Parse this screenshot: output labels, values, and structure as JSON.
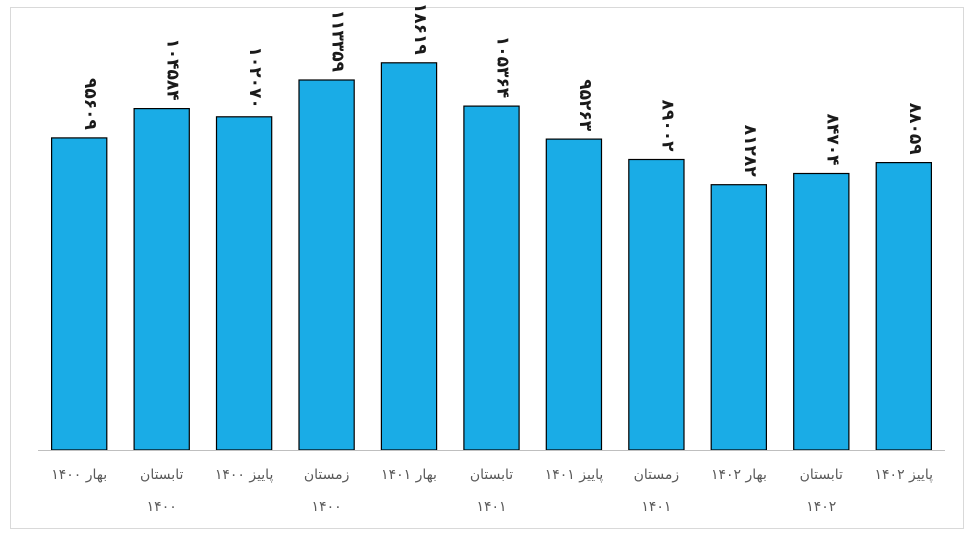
{
  "chart_data": {
    "type": "bar",
    "categories": [
      [
        "بهار ۱۴۰۰"
      ],
      [
        "تابستان",
        "۱۴۰۰"
      ],
      [
        "پاییز ۱۴۰۰"
      ],
      [
        "زمستان",
        "۱۴۰۰"
      ],
      [
        "بهار ۱۴۰۱"
      ],
      [
        "تابستان",
        "۱۴۰۱"
      ],
      [
        "پاییز ۱۴۰۱"
      ],
      [
        "زمستان",
        "۱۴۰۱"
      ],
      [
        "بهار ۱۴۰۲"
      ],
      [
        "تابستان",
        "۱۴۰۲"
      ],
      [
        "پاییز ۱۴۰۲"
      ]
    ],
    "values": [
      95609,
      104584,
      102070,
      113359,
      118619,
      105364,
      95263,
      89002,
      81282,
      84704,
      88059
    ],
    "value_labels": [
      "۹۵۶۰۹",
      "۱۰۴۵۸۴",
      "۱۰۲۰۷۰",
      "۱۱۳۳۵۹",
      "۱۱۸۶۱۹",
      "۱۰۵۳۶۴",
      "۹۵۲۶۳",
      "۸۹۰۰۲",
      "۸۱۲۸۲",
      "۸۴۷۰۴",
      "۸۸۰۵۹"
    ],
    "ylim": [
      0,
      125000
    ],
    "grid": false,
    "bar_color": "#1aace6",
    "bar_stroke": "#000000"
  }
}
